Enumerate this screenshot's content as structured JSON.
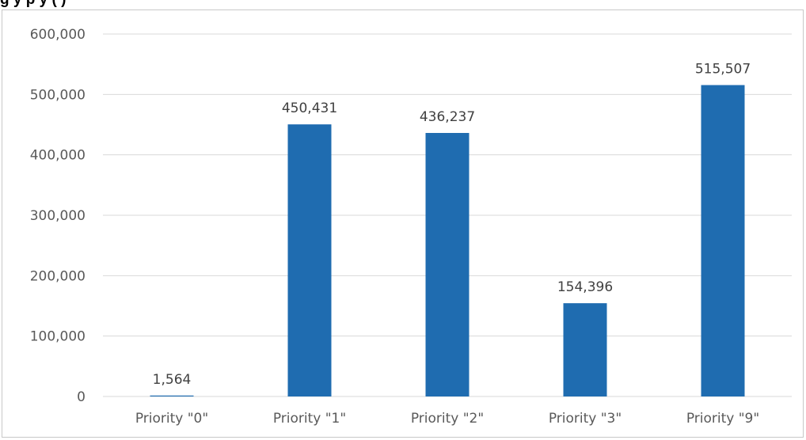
{
  "title_fragment": "g                                    y       p      y       (                )",
  "chart_data": {
    "type": "bar",
    "categories": [
      "Priority \"0\"",
      "Priority \"1\"",
      "Priority \"2\"",
      "Priority \"3\"",
      "Priority \"9\""
    ],
    "values": [
      1564,
      450431,
      436237,
      154396,
      515507
    ],
    "data_labels": [
      "1,564",
      "450,431",
      "436,237",
      "154,396",
      "515,507"
    ],
    "y_ticks": [
      0,
      100000,
      200000,
      300000,
      400000,
      500000,
      600000
    ],
    "y_tick_labels": [
      "0",
      "100,000",
      "200,000",
      "300,000",
      "400,000",
      "500,000",
      "600,000"
    ],
    "ylim": [
      0,
      600000
    ],
    "grid": true,
    "legend": "none",
    "bar_color": "#1f6cb0",
    "grid_color": "#d9d9d9"
  }
}
